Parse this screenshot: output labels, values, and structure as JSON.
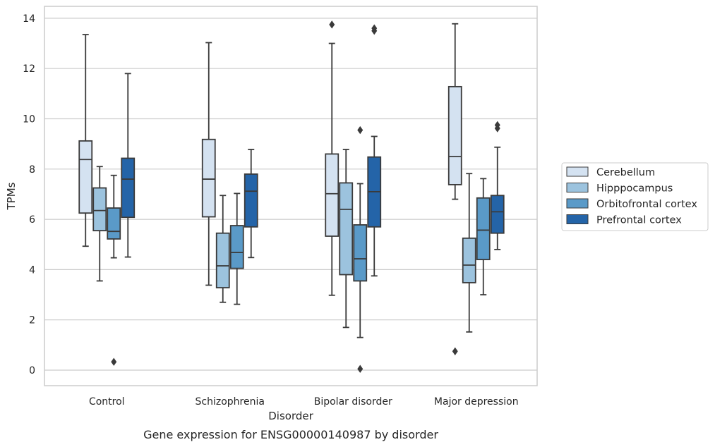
{
  "chart_data": {
    "type": "box",
    "xlabel": "Disorder",
    "ylabel": "TPMs",
    "caption": "Gene expression for ENSG00000140987 by disorder",
    "ylim": [
      -0.6,
      14.5
    ],
    "yticks": [
      0,
      2,
      4,
      6,
      8,
      10,
      12,
      14
    ],
    "grid": true,
    "legend_placement": "right-center",
    "categories": [
      "Control",
      "Schizophrenia",
      "Bipolar disorder",
      "Major depression"
    ],
    "series": [
      {
        "name": "Cerebellum",
        "color": "#d4e2f1",
        "boxes": [
          {
            "q1": 6.25,
            "median": 8.38,
            "q3": 9.12,
            "whisker_low": 4.93,
            "whisker_high": 13.35,
            "outliers": []
          },
          {
            "q1": 6.1,
            "median": 7.6,
            "q3": 9.18,
            "whisker_low": 3.38,
            "whisker_high": 13.03,
            "outliers": []
          },
          {
            "q1": 5.33,
            "median": 7.02,
            "q3": 8.6,
            "whisker_low": 2.98,
            "whisker_high": 13.0,
            "outliers": [
              13.75
            ]
          },
          {
            "q1": 7.38,
            "median": 8.5,
            "q3": 11.28,
            "whisker_low": 6.8,
            "whisker_high": 13.78,
            "outliers": [
              0.75
            ]
          }
        ]
      },
      {
        "name": "Hipppocampus",
        "color": "#9cc3de",
        "boxes": [
          {
            "q1": 5.55,
            "median": 6.35,
            "q3": 7.25,
            "whisker_low": 3.55,
            "whisker_high": 8.1,
            "outliers": []
          },
          {
            "q1": 3.28,
            "median": 4.15,
            "q3": 5.45,
            "whisker_low": 2.7,
            "whisker_high": 6.95,
            "outliers": []
          },
          {
            "q1": 3.8,
            "median": 6.4,
            "q3": 7.45,
            "whisker_low": 1.7,
            "whisker_high": 8.78,
            "outliers": []
          },
          {
            "q1": 3.48,
            "median": 4.18,
            "q3": 5.25,
            "whisker_low": 1.52,
            "whisker_high": 7.82,
            "outliers": []
          }
        ]
      },
      {
        "name": "Orbitofrontal cortex",
        "color": "#5a9ac8",
        "boxes": [
          {
            "q1": 5.22,
            "median": 5.52,
            "q3": 6.45,
            "whisker_low": 4.47,
            "whisker_high": 7.75,
            "outliers": [
              0.33
            ]
          },
          {
            "q1": 4.05,
            "median": 4.68,
            "q3": 5.75,
            "whisker_low": 2.62,
            "whisker_high": 7.03,
            "outliers": []
          },
          {
            "q1": 3.55,
            "median": 4.43,
            "q3": 5.78,
            "whisker_low": 1.3,
            "whisker_high": 7.42,
            "outliers": [
              9.55,
              0.05
            ]
          },
          {
            "q1": 4.4,
            "median": 5.57,
            "q3": 6.85,
            "whisker_low": 3.0,
            "whisker_high": 7.62,
            "outliers": []
          }
        ]
      },
      {
        "name": "Prefrontal cortex",
        "color": "#2464a8",
        "boxes": [
          {
            "q1": 6.08,
            "median": 7.6,
            "q3": 8.43,
            "whisker_low": 4.5,
            "whisker_high": 11.8,
            "outliers": []
          },
          {
            "q1": 5.7,
            "median": 7.12,
            "q3": 7.8,
            "whisker_low": 4.48,
            "whisker_high": 8.78,
            "outliers": []
          },
          {
            "q1": 5.7,
            "median": 7.1,
            "q3": 8.48,
            "whisker_low": 3.75,
            "whisker_high": 9.3,
            "outliers": [
              13.5,
              13.6
            ]
          },
          {
            "q1": 5.45,
            "median": 6.3,
            "q3": 6.95,
            "whisker_low": 4.8,
            "whisker_high": 8.87,
            "outliers": [
              9.62,
              9.75
            ]
          }
        ]
      }
    ]
  }
}
